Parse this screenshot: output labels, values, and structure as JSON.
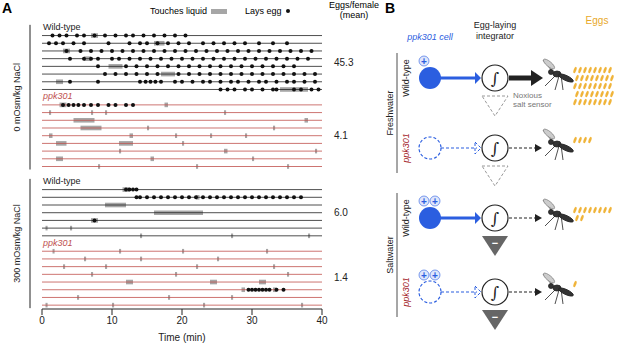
{
  "chart_data": {
    "type": "raster",
    "panel_label": "A",
    "x_label": "Time (min)",
    "xlim": [
      0,
      40
    ],
    "xticks": [
      0,
      10,
      20,
      30,
      40
    ],
    "legend_items": {
      "touch": "Touches liquid",
      "egg": "Lays egg"
    },
    "mean_header": "Eggs/female (mean)",
    "touch_color": "#a6a6a6",
    "egg_color": "#111111",
    "marker": "circle",
    "conditions": [
      {
        "name": "0 mOsm/kg NaCl",
        "groups": [
          {
            "name": "Wild-type",
            "color": "#222222",
            "mean": 45.3,
            "rows": [
              {
                "touches": [
                  [
                    7,
                    8
                  ]
                ],
                "eggs": [
                  1.5,
                  2.5,
                  3.5,
                  5,
                  6,
                  7.5,
                  9,
                  10.5,
                  12,
                  13,
                  14.5,
                  16,
                  17.5,
                  19,
                  20.5
                ]
              },
              {
                "touches": [
                  [
                    16,
                    17.5
                  ]
                ],
                "eggs": [
                  1,
                  2,
                  3,
                  4.5,
                  6,
                  9.5,
                  12.5,
                  14,
                  15,
                  16.5,
                  18,
                  19.5,
                  21,
                  23,
                  24.5,
                  26,
                  27.5,
                  29,
                  31,
                  33,
                  35
                ]
              },
              {
                "touches": [
                  [
                    3,
                    4
                  ]
                ],
                "eggs": [
                  3.5,
                  5.5,
                  7,
                  8.5,
                  10,
                  11.5,
                  13,
                  14.5,
                  16,
                  17.5,
                  19,
                  20.5,
                  22,
                  23.5,
                  25,
                  26.5,
                  28,
                  29.5,
                  31,
                  32.5,
                  34,
                  35.5,
                  37,
                  38.5
                ]
              },
              {
                "touches": [
                  [
                    6,
                    7
                  ]
                ],
                "eggs": [
                  4,
                  6,
                  7,
                  8,
                  10,
                  11,
                  12.5,
                  14,
                  15.5,
                  17,
                  18.5,
                  20,
                  21.5,
                  23,
                  24.5,
                  26,
                  27.5,
                  29,
                  30.5,
                  32,
                  33.5,
                  35,
                  36.5,
                  38
                ]
              },
              {
                "touches": [
                  [
                    9.5,
                    11.5
                  ]
                ],
                "eggs": [
                  8,
                  12,
                  13.5,
                  15,
                  16.5,
                  18,
                  19.5,
                  21,
                  22.5,
                  24,
                  25.5,
                  27,
                  28.5,
                  30,
                  31.5,
                  33,
                  34.5,
                  36
                ]
              },
              {
                "touches": [
                  [
                    17,
                    19
                  ]
                ],
                "eggs": [
                  9,
                  10.5,
                  12,
                  13.5,
                  15,
                  16.5,
                  19.5,
                  21,
                  22.5,
                  24,
                  25.5,
                  27,
                  28.5,
                  30,
                  31.5,
                  33,
                  34.5,
                  36,
                  37.5,
                  39
                ]
              },
              {
                "touches": [
                  [
                    2,
                    3
                  ]
                ],
                "eggs": [
                  4,
                  8,
                  14,
                  14.8,
                  15.5,
                  16.2,
                  17,
                  19,
                  20,
                  21.5,
                  23,
                  24,
                  25.5,
                  27,
                  28,
                  29.5,
                  31,
                  32,
                  33.5,
                  35,
                  36,
                  37.5,
                  39
                ]
              },
              {
                "touches": [
                  [
                    34,
                    38
                  ]
                ],
                "eggs": [
                  25.5,
                  26.5,
                  27.5,
                  29,
                  30,
                  31.5,
                  33,
                  33.5,
                  36,
                  37,
                  38.5,
                  39.5
                ]
              }
            ]
          },
          {
            "name": "ppk301",
            "color": "#c0504d",
            "mean": 4.1,
            "rows": [
              {
                "touches": [
                  [
                    2.5,
                    3.5
                  ],
                  [
                    17.5,
                    18
                  ]
                ],
                "eggs": [
                  3,
                  3.8,
                  4.5,
                  5.2,
                  6,
                  7,
                  8,
                  9.5,
                  10.5,
                  12,
                  13
                ]
              },
              {
                "touches": [
                  [
                    1,
                    1.3
                  ],
                  [
                    7,
                    7.3
                  ],
                  [
                    9,
                    9.3
                  ],
                  [
                    26,
                    26.3
                  ]
                ],
                "eggs": []
              },
              {
                "touches": [
                  [
                    4.5,
                    7.5
                  ],
                  [
                    37.5,
                    38
                  ]
                ],
                "eggs": []
              },
              {
                "touches": [
                  [
                    5.5,
                    8.5
                  ],
                  [
                    15,
                    15.3
                  ],
                  [
                    33,
                    33.3
                  ]
                ],
                "eggs": []
              },
              {
                "touches": [
                  [
                    1,
                    1.5
                  ],
                  [
                    12.5,
                    13
                  ],
                  [
                    19,
                    19.3
                  ],
                  [
                    24,
                    24.3
                  ],
                  [
                    29,
                    29.3
                  ]
                ],
                "eggs": []
              },
              {
                "touches": [
                  [
                    2,
                    3.5
                  ],
                  [
                    11,
                    13
                  ],
                  [
                    20,
                    20.3
                  ]
                ],
                "eggs": []
              },
              {
                "touches": [
                  [
                    11,
                    11.3
                  ],
                  [
                    26,
                    26.5
                  ],
                  [
                    39,
                    39.3
                  ]
                ],
                "eggs": []
              },
              {
                "touches": [
                  [
                    2,
                    3
                  ],
                  [
                    15.5,
                    16
                  ],
                  [
                    30,
                    30.3
                  ]
                ],
                "eggs": []
              },
              {
                "touches": [
                  [
                    8,
                    8.3
                  ],
                  [
                    22,
                    22.3
                  ],
                  [
                    35,
                    35.3
                  ]
                ],
                "eggs": []
              }
            ]
          }
        ]
      },
      {
        "name": "300 mOsm/kg NaCl",
        "groups": [
          {
            "name": "Wild-type",
            "color": "#222222",
            "mean": 6.0,
            "rows": [
              {
                "touches": [
                  [
                    11.5,
                    12.5
                  ]
                ],
                "eggs": [
                  12,
                  12.5,
                  13,
                  13.5
                ]
              },
              {
                "touches": [
                  [
                    22,
                    22.5
                  ]
                ],
                "eggs": [
                  13.5,
                  14,
                  15,
                  16,
                  17,
                  18,
                  19,
                  20,
                  21,
                  22,
                  23,
                  24,
                  25,
                  26,
                  27,
                  28,
                  29,
                  30,
                  31,
                  32,
                  33,
                  34,
                  35,
                  36,
                  37
                ]
              },
              {
                "touches": [
                  [
                    9,
                    12
                  ]
                ],
                "eggs": []
              },
              {
                "touches": [
                  [
                    16,
                    23
                  ]
                ],
                "eggs": []
              },
              {
                "touches": [
                  [
                    7,
                    8
                  ]
                ],
                "eggs": [
                  7.5
                ]
              },
              {
                "touches": [
                  [
                    0.5,
                    0.8
                  ],
                  [
                    4,
                    4.3
                  ]
                ],
                "eggs": []
              },
              {
                "touches": [
                  [
                    14,
                    14.3
                  ],
                  [
                    27,
                    27.3
                  ],
                  [
                    38,
                    38.3
                  ]
                ],
                "eggs": []
              }
            ]
          },
          {
            "name": "ppk301",
            "color": "#c0504d",
            "mean": 1.4,
            "rows": [
              {
                "touches": [
                  [
                    1.5,
                    1.8
                  ],
                  [
                    11,
                    11.3
                  ],
                  [
                    20,
                    20.3
                  ],
                  [
                    32,
                    32.3
                  ]
                ],
                "eggs": []
              },
              {
                "touches": [
                  [
                    6,
                    6.3
                  ],
                  [
                    14,
                    14.3
                  ],
                  [
                    25,
                    25.3
                  ]
                ],
                "eggs": []
              },
              {
                "touches": [
                  [
                    3,
                    3.3
                  ],
                  [
                    9,
                    9.3
                  ],
                  [
                    22,
                    22.3
                  ],
                  [
                    33,
                    33.3
                  ]
                ],
                "eggs": []
              },
              {
                "touches": [
                  [
                    7,
                    7.3
                  ],
                  [
                    19,
                    19.3
                  ],
                  [
                    35,
                    35.3
                  ]
                ],
                "eggs": []
              },
              {
                "touches": [
                  [
                    12,
                    13
                  ],
                  [
                    24,
                    25
                  ],
                  [
                    31,
                    32
                  ]
                ],
                "eggs": []
              },
              {
                "touches": [
                  [
                    28.5,
                    29
                  ],
                  [
                    33,
                    33.5
                  ]
                ],
                "eggs": [
                  29.5,
                  30,
                  30.5,
                  31,
                  31.5,
                  32,
                  32.5,
                  33.5,
                  34.5
                ]
              },
              {
                "touches": [
                  [
                    5,
                    5.3
                  ],
                  [
                    18,
                    18.3
                  ],
                  [
                    27,
                    27.3
                  ]
                ],
                "eggs": []
              },
              {
                "touches": [
                  [
                    0.5,
                    0.8
                  ],
                  [
                    10,
                    10.3
                  ],
                  [
                    23,
                    23.3
                  ],
                  [
                    37,
                    37.3
                  ]
                ],
                "eggs": []
              }
            ]
          }
        ]
      }
    ]
  },
  "diagram": {
    "panel_label": "B",
    "cell_label": "ppk301 cell",
    "integrator_label": [
      "Egg-laying",
      "integrator"
    ],
    "sensor_label": [
      "Noxious",
      "salt sensor"
    ],
    "eggs_label": "Eggs",
    "conditions": [
      "Freshwater",
      "Saltwater"
    ],
    "genotypes": [
      "Wild-type",
      "ppk301"
    ],
    "integrator_symbol": "∫",
    "excite_symbol": "+",
    "inhibit_symbol": "−"
  }
}
